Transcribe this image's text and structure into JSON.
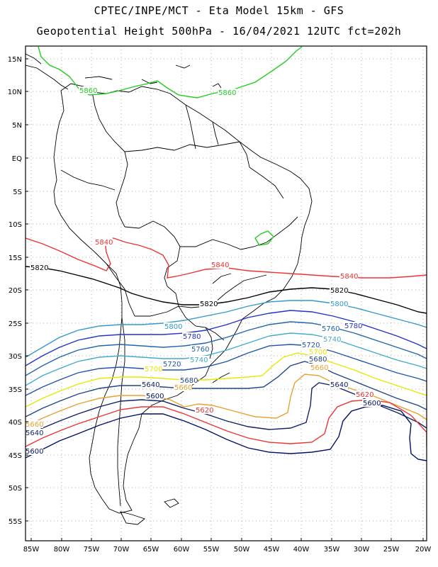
{
  "title_line1": "CPTEC/INPE/MCT -  Eta Model 15km - GFS",
  "title_line2": "Geopotential Height 500hPa - 16/04/2021 12UTC fct=202h",
  "y_ticks": [
    "15N",
    "10N",
    "5N",
    "EQ",
    "5S",
    "10S",
    "15S",
    "20S",
    "25S",
    "30S",
    "35S",
    "40S",
    "45S",
    "50S",
    "55S"
  ],
  "x_ticks": [
    "85W",
    "80W",
    "75W",
    "70W",
    "65W",
    "60W",
    "55W",
    "50W",
    "45W",
    "40W",
    "35W",
    "30W",
    "25W",
    "20W"
  ],
  "contours": [
    {
      "value": "5860",
      "color": "#22cc22"
    },
    {
      "value": "5840",
      "color": "#ee3333"
    },
    {
      "value": "5820",
      "color": "#000000"
    },
    {
      "value": "5800",
      "color": "#3399cc"
    },
    {
      "value": "5780",
      "color": "#2233cc"
    },
    {
      "value": "5760",
      "color": "#2266aa"
    },
    {
      "value": "5740",
      "color": "#44aacc"
    },
    {
      "value": "5720",
      "color": "#2255aa"
    },
    {
      "value": "5700",
      "color": "#e8e800"
    },
    {
      "value": "5680",
      "color": "#224488"
    },
    {
      "value": "5660",
      "color": "#e8a030"
    },
    {
      "value": "5640",
      "color": "#112266"
    },
    {
      "value": "5620",
      "color": "#ee3333"
    },
    {
      "value": "5600",
      "color": "#001166"
    }
  ],
  "contour_labels": [
    {
      "text": "5860",
      "color": "#22cc22"
    },
    {
      "text": "5860",
      "color": "#22cc22"
    },
    {
      "text": "5840",
      "color": "#ee3333"
    },
    {
      "text": "5840",
      "color": "#ee3333"
    },
    {
      "text": "5840",
      "color": "#ee3333"
    },
    {
      "text": "5820",
      "color": "#000000"
    },
    {
      "text": "5820",
      "color": "#000000"
    },
    {
      "text": "5820",
      "color": "#000000"
    },
    {
      "text": "5800",
      "color": "#3399cc"
    },
    {
      "text": "5800",
      "color": "#3399cc"
    },
    {
      "text": "5780",
      "color": "#2233cc"
    },
    {
      "text": "5780",
      "color": "#2233cc"
    },
    {
      "text": "5760",
      "color": "#2266aa"
    },
    {
      "text": "5760",
      "color": "#2266aa"
    },
    {
      "text": "5740",
      "color": "#44aacc"
    },
    {
      "text": "5740",
      "color": "#44aacc"
    },
    {
      "text": "5720",
      "color": "#2255aa"
    },
    {
      "text": "5720",
      "color": "#2255aa"
    },
    {
      "text": "5700",
      "color": "#e8e800"
    },
    {
      "text": "5700",
      "color": "#e8e800"
    },
    {
      "text": "5680",
      "color": "#224488"
    },
    {
      "text": "5680",
      "color": "#224488"
    },
    {
      "text": "5660",
      "color": "#e8a030"
    },
    {
      "text": "5660",
      "color": "#e8a030"
    },
    {
      "text": "5660",
      "color": "#e8a030"
    },
    {
      "text": "5640",
      "color": "#112266"
    },
    {
      "text": "5640",
      "color": "#112266"
    },
    {
      "text": "5640",
      "color": "#112266"
    },
    {
      "text": "5620",
      "color": "#ee3333"
    },
    {
      "text": "5620",
      "color": "#ee3333"
    },
    {
      "text": "5600",
      "color": "#001166"
    },
    {
      "text": "5600",
      "color": "#001166"
    },
    {
      "text": "5600",
      "color": "#001166"
    }
  ]
}
